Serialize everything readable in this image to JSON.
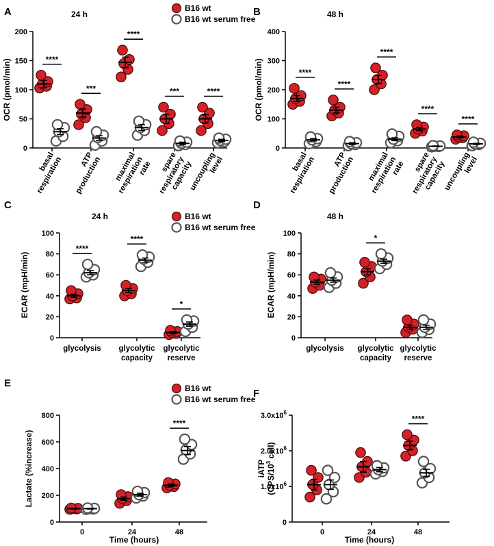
{
  "chart_data": [
    {
      "panel": "A",
      "type": "scatter",
      "title": "24 h",
      "ylabel": "OCR (pmol/min)",
      "ylim": [
        0,
        200
      ],
      "yticks": [
        0,
        50,
        100,
        150,
        200
      ],
      "categories": [
        [
          "basal",
          "respiration"
        ],
        [
          "ATP",
          "production"
        ],
        [
          "maximal",
          "respiration",
          "rate"
        ],
        [
          "spare",
          "respiratory",
          "capacity"
        ],
        [
          "uncoupling",
          "level"
        ]
      ],
      "legend": [
        "B16 wt",
        "B16 wt serum free"
      ],
      "series": [
        {
          "name": "B16 wt",
          "mean": [
            110,
            60,
            147,
            50,
            50
          ],
          "sem": [
            6,
            7,
            9,
            8,
            7
          ],
          "points": [
            [
              103,
              106,
              110,
              114,
              125
            ],
            [
              40,
              52,
              58,
              66,
              75
            ],
            [
              122,
              135,
              145,
              152,
              168
            ],
            [
              30,
              42,
              50,
              58,
              70
            ],
            [
              30,
              42,
              50,
              60,
              70
            ]
          ]
        },
        {
          "name": "B16 wt serum free",
          "mean": [
            28,
            17,
            35,
            8,
            13
          ],
          "sem": [
            5,
            4,
            5,
            2,
            2
          ],
          "points": [
            [
              12,
              20,
              28,
              35,
              40
            ],
            [
              5,
              12,
              18,
              22,
              28
            ],
            [
              22,
              30,
              35,
              40,
              46
            ],
            [
              4,
              6,
              8,
              10,
              12
            ],
            [
              9,
              11,
              13,
              15,
              17
            ]
          ]
        }
      ],
      "significance": [
        "****",
        "***",
        "****",
        "***",
        "****"
      ]
    },
    {
      "panel": "B",
      "type": "scatter",
      "title": "48 h",
      "ylabel": "OCR (pmol/min)",
      "ylim": [
        0,
        400
      ],
      "yticks": [
        0,
        100,
        200,
        300,
        400
      ],
      "categories": [
        [
          "basal",
          "respiration"
        ],
        [
          "ATP",
          "production"
        ],
        [
          "maximal",
          "respiration",
          "rate"
        ],
        [
          "spare",
          "respiratory",
          "capacity"
        ],
        [
          "uncoupling",
          "level"
        ]
      ],
      "series": [
        {
          "name": "B16 wt",
          "mean": [
            170,
            130,
            235,
            65,
            38
          ],
          "sem": [
            10,
            10,
            14,
            6,
            3
          ],
          "points": [
            [
              150,
              160,
              170,
              180,
              205
            ],
            [
              110,
              120,
              130,
              140,
              165
            ],
            [
              200,
              220,
              235,
              250,
              275
            ],
            [
              50,
              58,
              65,
              72,
              80
            ],
            [
              30,
              35,
              38,
              42,
              45
            ]
          ]
        },
        {
          "name": "B16 wt serum free",
          "mean": [
            28,
            15,
            30,
            6,
            14
          ],
          "sem": [
            4,
            3,
            5,
            1,
            2
          ],
          "points": [
            [
              15,
              22,
              28,
              32,
              38
            ],
            [
              8,
              12,
              15,
              18,
              22
            ],
            [
              18,
              25,
              30,
              40,
              48
            ],
            [
              4,
              5,
              6,
              7,
              8
            ],
            [
              8,
              12,
              14,
              16,
              20
            ]
          ]
        }
      ],
      "significance": [
        "****",
        "****",
        "****",
        "****",
        "****"
      ]
    },
    {
      "panel": "C",
      "type": "scatter",
      "title": "24 h",
      "ylabel": "ECAR (mpH/min)",
      "ylim": [
        0,
        100
      ],
      "yticks": [
        0,
        20,
        40,
        60,
        80,
        100
      ],
      "categories": [
        [
          "glycolysis"
        ],
        [
          "glycolytic",
          "capacity"
        ],
        [
          "glycolytic",
          "reserve"
        ]
      ],
      "legend": [
        "B16 wt",
        "B16 wt serum free"
      ],
      "series": [
        {
          "name": "B16 wt",
          "mean": [
            40,
            45,
            5
          ],
          "sem": [
            1.5,
            2,
            1
          ],
          "points": [
            [
              37,
              38,
              40,
              42,
              45
            ],
            [
              40,
              42,
              45,
              47,
              50
            ],
            [
              3,
              4,
              5,
              6,
              7
            ]
          ]
        },
        {
          "name": "B16 wt serum free",
          "mean": [
            62,
            74,
            13
          ],
          "sem": [
            2,
            2,
            2
          ],
          "points": [
            [
              58,
              60,
              62,
              65,
              70
            ],
            [
              68,
              72,
              75,
              77,
              79
            ],
            [
              6,
              10,
              13,
              16,
              17
            ]
          ]
        }
      ],
      "significance": [
        "****",
        "****",
        "*"
      ]
    },
    {
      "panel": "D",
      "type": "scatter",
      "title": "48 h",
      "ylabel": "ECAR (mpH/min)",
      "ylim": [
        0,
        100
      ],
      "yticks": [
        0,
        20,
        40,
        60,
        80,
        100
      ],
      "categories": [
        [
          "glycolysis"
        ],
        [
          "glycolytic",
          "capacity"
        ],
        [
          "glycolytic",
          "reserve"
        ]
      ],
      "series": [
        {
          "name": "B16 wt",
          "mean": [
            53,
            63,
            10
          ],
          "sem": [
            2,
            3,
            2
          ],
          "points": [
            [
              47,
              50,
              53,
              56,
              58
            ],
            [
              52,
              58,
              63,
              68,
              72
            ],
            [
              5,
              8,
              10,
              13,
              17
            ]
          ]
        },
        {
          "name": "B16 wt serum free",
          "mean": [
            55,
            73,
            10
          ],
          "sem": [
            2,
            2,
            2
          ],
          "points": [
            [
              48,
              52,
              55,
              58,
              62
            ],
            [
              66,
              70,
              73,
              76,
              80
            ],
            [
              5,
              8,
              10,
              13,
              17
            ]
          ]
        }
      ],
      "significance": [
        "",
        "*",
        ""
      ]
    },
    {
      "panel": "E",
      "type": "scatter",
      "xlabel": "Time (hours)",
      "ylabel": "Lactate (%increase)",
      "ylim": [
        0,
        800
      ],
      "yticks": [
        0,
        200,
        400,
        600,
        800
      ],
      "categories": [
        "0",
        "24",
        "48"
      ],
      "legend": [
        "B16 wt",
        "B16 wt serum free"
      ],
      "series": [
        {
          "name": "B16 wt",
          "mean": [
            100,
            175,
            275
          ],
          "sem": [
            3,
            12,
            10
          ],
          "points": [
            [
              95,
              98,
              100,
              102,
              105
            ],
            [
              140,
              160,
              175,
              190,
              205
            ],
            [
              255,
              265,
              275,
              285,
              295
            ]
          ]
        },
        {
          "name": "B16 wt serum free",
          "mean": [
            100,
            205,
            535
          ],
          "sem": [
            3,
            10,
            30
          ],
          "points": [
            [
              95,
              98,
              100,
              102,
              105
            ],
            [
              180,
              195,
              205,
              220,
              230
            ],
            [
              470,
              510,
              540,
              580,
              620
            ]
          ]
        }
      ],
      "significance": [
        "",
        "",
        "****"
      ]
    },
    {
      "panel": "F",
      "type": "scatter",
      "xlabel": "Time (hours)",
      "ylabel": [
        "iATP",
        "(CPS/10",
        "3",
        " cell)"
      ],
      "ylim": [
        0,
        3000000
      ],
      "yticks": [
        0,
        1000000,
        2000000,
        3000000
      ],
      "ytick_labels": [
        {
          "base": "0",
          "exp": ""
        },
        {
          "base": "1.0x10",
          "exp": "6"
        },
        {
          "base": "2.0x10",
          "exp": "6"
        },
        {
          "base": "3.0x10",
          "exp": "6"
        }
      ],
      "categories": [
        "0",
        "24",
        "48"
      ],
      "series": [
        {
          "name": "B16 wt",
          "mean": [
            1050000,
            1550000,
            2150000
          ],
          "sem": [
            150000,
            150000,
            120000
          ],
          "points": [
            [
              700000,
              900000,
              1050000,
              1250000,
              1450000
            ],
            [
              1250000,
              1400000,
              1550000,
              1700000,
              1950000
            ],
            [
              1850000,
              2000000,
              2150000,
              2300000,
              2450000
            ]
          ]
        },
        {
          "name": "B16 wt serum free",
          "mean": [
            1050000,
            1470000,
            1380000
          ],
          "sem": [
            130000,
            60000,
            100000
          ],
          "points": [
            [
              650000,
              850000,
              1050000,
              1250000,
              1450000
            ],
            [
              1350000,
              1420000,
              1470000,
              1520000,
              1580000
            ],
            [
              1100000,
              1250000,
              1380000,
              1500000,
              1700000
            ]
          ]
        }
      ],
      "significance": [
        "",
        "",
        "****"
      ]
    }
  ],
  "colors": {
    "wt": "#d62027",
    "serum_free": "#ffffff",
    "outline": "#555555",
    "axis": "#000000"
  }
}
